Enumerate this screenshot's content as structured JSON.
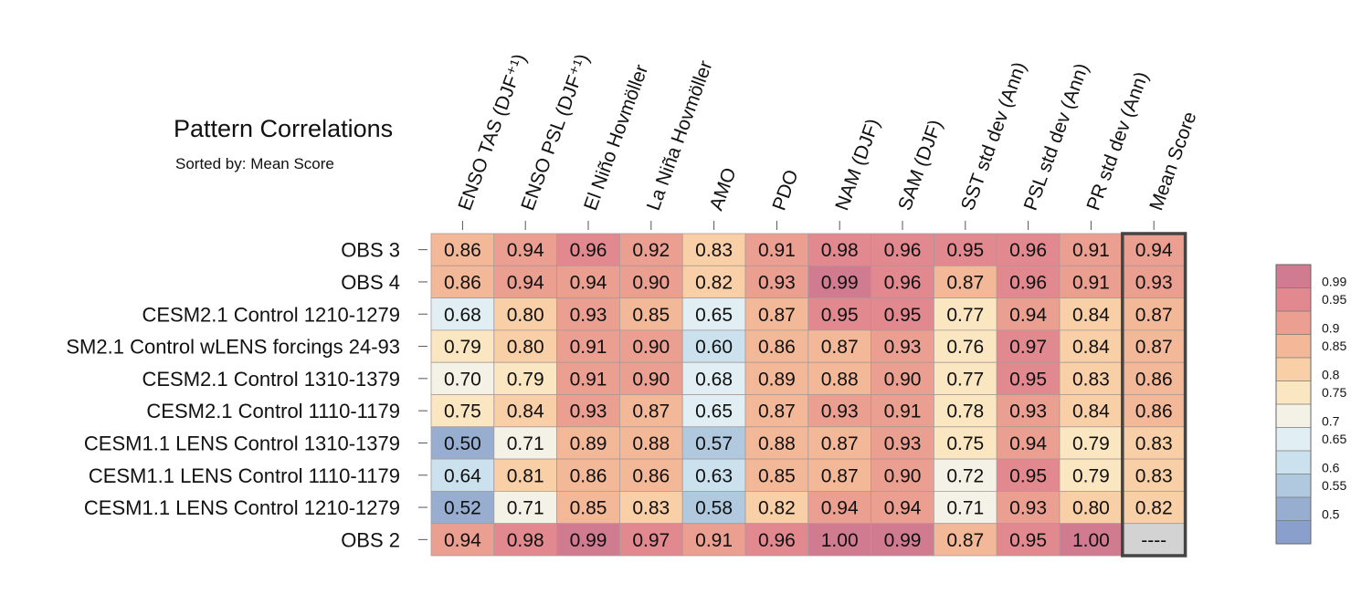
{
  "title": "Pattern Correlations",
  "subtitle": "Sorted by: Mean Score",
  "chart_data": {
    "type": "heatmap",
    "title": "Pattern Correlations",
    "subtitle": "Sorted by: Mean Score",
    "columns": [
      "ENSO TAS (DJF⁺¹)",
      "ENSO PSL (DJF⁺¹)",
      "El Niño Hovmöller",
      "La Niña Hovmöller",
      "AMO",
      "PDO",
      "NAM (DJF)",
      "SAM (DJF)",
      "SST std dev (Ann)",
      "PSL std dev (Ann)",
      "PR std dev (Ann)",
      "Mean Score"
    ],
    "rows": [
      {
        "name": "OBS 3",
        "values": [
          "0.86",
          "0.94",
          "0.96",
          "0.92",
          "0.83",
          "0.91",
          "0.98",
          "0.96",
          "0.95",
          "0.96",
          "0.91",
          "0.94"
        ]
      },
      {
        "name": "OBS 4",
        "values": [
          "0.86",
          "0.94",
          "0.94",
          "0.90",
          "0.82",
          "0.93",
          "0.99",
          "0.96",
          "0.87",
          "0.96",
          "0.91",
          "0.93"
        ]
      },
      {
        "name": "CESM2.1 Control 1210-1279",
        "values": [
          "0.68",
          "0.80",
          "0.93",
          "0.85",
          "0.65",
          "0.87",
          "0.95",
          "0.95",
          "0.77",
          "0.94",
          "0.84",
          "0.87"
        ]
      },
      {
        "name": "SM2.1 Control wLENS forcings 24-93",
        "values": [
          "0.79",
          "0.80",
          "0.91",
          "0.90",
          "0.60",
          "0.86",
          "0.87",
          "0.93",
          "0.76",
          "0.97",
          "0.84",
          "0.87"
        ]
      },
      {
        "name": "CESM2.1 Control 1310-1379",
        "values": [
          "0.70",
          "0.79",
          "0.91",
          "0.90",
          "0.68",
          "0.89",
          "0.88",
          "0.90",
          "0.77",
          "0.95",
          "0.83",
          "0.86"
        ]
      },
      {
        "name": "CESM2.1 Control 1110-1179",
        "values": [
          "0.75",
          "0.84",
          "0.93",
          "0.87",
          "0.65",
          "0.87",
          "0.93",
          "0.91",
          "0.78",
          "0.93",
          "0.84",
          "0.86"
        ]
      },
      {
        "name": "CESM1.1 LENS Control 1310-1379",
        "values": [
          "0.50",
          "0.71",
          "0.89",
          "0.88",
          "0.57",
          "0.88",
          "0.87",
          "0.93",
          "0.75",
          "0.94",
          "0.79",
          "0.83"
        ]
      },
      {
        "name": "CESM1.1 LENS Control 1110-1179",
        "values": [
          "0.64",
          "0.81",
          "0.86",
          "0.86",
          "0.63",
          "0.85",
          "0.87",
          "0.90",
          "0.72",
          "0.95",
          "0.79",
          "0.83"
        ]
      },
      {
        "name": "CESM1.1 LENS Control 1210-1279",
        "values": [
          "0.52",
          "0.71",
          "0.85",
          "0.83",
          "0.58",
          "0.82",
          "0.94",
          "0.94",
          "0.71",
          "0.93",
          "0.80",
          "0.82"
        ]
      },
      {
        "name": "OBS 2",
        "values": [
          "0.94",
          "0.98",
          "0.99",
          "0.97",
          "0.91",
          "0.96",
          "1.00",
          "0.99",
          "0.87",
          "0.95",
          "1.00",
          "----"
        ]
      }
    ],
    "colorbar": {
      "levels": [
        "0.99",
        "0.95",
        "0.9",
        "0.85",
        "0.8",
        "0.75",
        "0.7",
        "0.65",
        "0.6",
        "0.55",
        "0.5"
      ],
      "colors": [
        "#d17b90",
        "#e2898f",
        "#eb9f90",
        "#f3b898",
        "#f8cfa6",
        "#fbe6c2",
        "#f4f2e6",
        "#e1eef4",
        "#cbe1ed",
        "#b0c9de",
        "#97aed1",
        "#8a9fcb"
      ],
      "missing_color": "#d3d3d3"
    }
  }
}
